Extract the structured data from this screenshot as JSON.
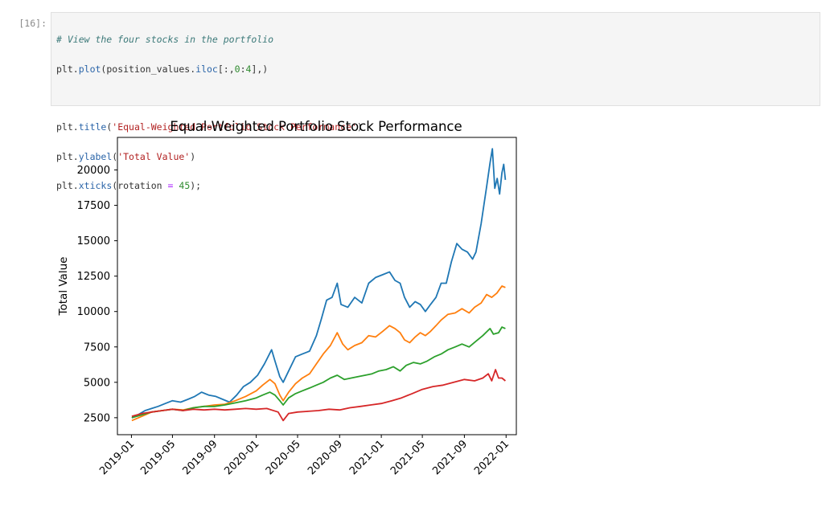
{
  "cell": {
    "prompt": "[16]:",
    "code": {
      "line1": "# View the four stocks in the portfolio",
      "line2": {
        "a": "plt",
        "b": ".",
        "c": "plot",
        "d": "(position_values",
        "e": ".",
        "f": "iloc",
        "g": "[:,",
        "h": "0",
        "i": ":",
        "j": "4",
        "k": "],)"
      },
      "line4": {
        "a": "plt",
        "b": ".",
        "c": "title",
        "d": "(",
        "e": "'Equal-Weighted Portfolio Stock Performance'",
        "f": ")"
      },
      "line5": {
        "a": "plt",
        "b": ".",
        "c": "ylabel",
        "d": "(",
        "e": "'Total Value'",
        "f": ")"
      },
      "line6": {
        "a": "plt",
        "b": ".",
        "c": "xticks",
        "d": "(rotation ",
        "e": "=",
        "f": " ",
        "g": "45",
        "h": ");"
      }
    }
  },
  "chart_data": {
    "type": "line",
    "title": "Equal-Weighted Portfolio Stock Performance",
    "xlabel": "",
    "ylabel": "Total Value",
    "x_ticks": [
      "2019-01",
      "2019-05",
      "2019-09",
      "2020-01",
      "2020-05",
      "2020-09",
      "2021-01",
      "2021-05",
      "2021-09",
      "2022-01"
    ],
    "y_ticks": [
      2500,
      5000,
      7500,
      10000,
      12500,
      15000,
      17500,
      20000
    ],
    "xlim": [
      "2018-11-21",
      "2022-01-31"
    ],
    "ylim": [
      1300,
      22300
    ],
    "grid": false,
    "series": [
      {
        "color": "#1f77b4",
        "values": [
          [
            "2019-01-02",
            2500
          ],
          [
            "2019-01-20",
            2700
          ],
          [
            "2019-02-10",
            3000
          ],
          [
            "2019-03-01",
            3150
          ],
          [
            "2019-03-20",
            3300
          ],
          [
            "2019-04-10",
            3500
          ],
          [
            "2019-05-01",
            3700
          ],
          [
            "2019-05-25",
            3600
          ],
          [
            "2019-06-15",
            3800
          ],
          [
            "2019-07-05",
            4000
          ],
          [
            "2019-07-25",
            4300
          ],
          [
            "2019-08-15",
            4100
          ],
          [
            "2019-09-05",
            4000
          ],
          [
            "2019-09-25",
            3800
          ],
          [
            "2019-10-15",
            3600
          ],
          [
            "2019-11-05",
            4100
          ],
          [
            "2019-11-25",
            4700
          ],
          [
            "2019-12-15",
            5000
          ],
          [
            "2020-01-05",
            5500
          ],
          [
            "2020-01-25",
            6300
          ],
          [
            "2020-02-15",
            7300
          ],
          [
            "2020-02-25",
            6500
          ],
          [
            "2020-03-10",
            5400
          ],
          [
            "2020-03-20",
            5000
          ],
          [
            "2020-04-05",
            5800
          ],
          [
            "2020-04-25",
            6800
          ],
          [
            "2020-05-15",
            7000
          ],
          [
            "2020-06-05",
            7200
          ],
          [
            "2020-06-25",
            8300
          ],
          [
            "2020-07-10",
            9500
          ],
          [
            "2020-07-25",
            10800
          ],
          [
            "2020-08-10",
            11000
          ],
          [
            "2020-08-25",
            12000
          ],
          [
            "2020-09-05",
            10500
          ],
          [
            "2020-09-25",
            10300
          ],
          [
            "2020-10-15",
            11000
          ],
          [
            "2020-11-05",
            10600
          ],
          [
            "2020-11-25",
            12000
          ],
          [
            "2020-12-15",
            12400
          ],
          [
            "2021-01-05",
            12600
          ],
          [
            "2021-01-25",
            12800
          ],
          [
            "2021-02-10",
            12200
          ],
          [
            "2021-02-25",
            12000
          ],
          [
            "2021-03-10",
            11000
          ],
          [
            "2021-03-25",
            10300
          ],
          [
            "2021-04-10",
            10700
          ],
          [
            "2021-04-25",
            10500
          ],
          [
            "2021-05-10",
            10000
          ],
          [
            "2021-05-25",
            10500
          ],
          [
            "2021-06-10",
            11000
          ],
          [
            "2021-06-25",
            12000
          ],
          [
            "2021-07-10",
            12000
          ],
          [
            "2021-07-25",
            13500
          ],
          [
            "2021-08-10",
            14800
          ],
          [
            "2021-08-25",
            14400
          ],
          [
            "2021-09-10",
            14200
          ],
          [
            "2021-09-25",
            13700
          ],
          [
            "2021-10-05",
            14200
          ],
          [
            "2021-10-20",
            16200
          ],
          [
            "2021-11-05",
            18800
          ],
          [
            "2021-11-15",
            20500
          ],
          [
            "2021-11-22",
            21500
          ],
          [
            "2021-11-29",
            18700
          ],
          [
            "2021-12-06",
            19400
          ],
          [
            "2021-12-13",
            18300
          ],
          [
            "2021-12-20",
            19800
          ],
          [
            "2021-12-25",
            20400
          ],
          [
            "2021-12-30",
            19300
          ]
        ]
      },
      {
        "color": "#ff7f0e",
        "values": [
          [
            "2019-01-02",
            2300
          ],
          [
            "2019-02-01",
            2600
          ],
          [
            "2019-03-01",
            2900
          ],
          [
            "2019-04-01",
            3000
          ],
          [
            "2019-05-01",
            3100
          ],
          [
            "2019-06-01",
            3050
          ],
          [
            "2019-07-01",
            3200
          ],
          [
            "2019-08-01",
            3300
          ],
          [
            "2019-09-01",
            3400
          ],
          [
            "2019-10-01",
            3450
          ],
          [
            "2019-11-01",
            3700
          ],
          [
            "2019-12-01",
            4000
          ],
          [
            "2020-01-01",
            4400
          ],
          [
            "2020-01-20",
            4800
          ],
          [
            "2020-02-10",
            5200
          ],
          [
            "2020-02-25",
            4900
          ],
          [
            "2020-03-10",
            4100
          ],
          [
            "2020-03-20",
            3700
          ],
          [
            "2020-04-05",
            4300
          ],
          [
            "2020-04-25",
            4900
          ],
          [
            "2020-05-15",
            5300
          ],
          [
            "2020-06-05",
            5600
          ],
          [
            "2020-06-25",
            6300
          ],
          [
            "2020-07-15",
            7000
          ],
          [
            "2020-08-05",
            7600
          ],
          [
            "2020-08-25",
            8500
          ],
          [
            "2020-09-10",
            7700
          ],
          [
            "2020-09-25",
            7300
          ],
          [
            "2020-10-15",
            7600
          ],
          [
            "2020-11-05",
            7800
          ],
          [
            "2020-11-25",
            8300
          ],
          [
            "2020-12-15",
            8200
          ],
          [
            "2021-01-05",
            8600
          ],
          [
            "2021-01-25",
            9000
          ],
          [
            "2021-02-10",
            8800
          ],
          [
            "2021-02-25",
            8500
          ],
          [
            "2021-03-10",
            8000
          ],
          [
            "2021-03-25",
            7800
          ],
          [
            "2021-04-10",
            8200
          ],
          [
            "2021-04-25",
            8500
          ],
          [
            "2021-05-10",
            8300
          ],
          [
            "2021-05-25",
            8600
          ],
          [
            "2021-06-10",
            9000
          ],
          [
            "2021-06-25",
            9400
          ],
          [
            "2021-07-15",
            9800
          ],
          [
            "2021-08-05",
            9900
          ],
          [
            "2021-08-25",
            10200
          ],
          [
            "2021-09-15",
            9900
          ],
          [
            "2021-10-01",
            10300
          ],
          [
            "2021-10-20",
            10600
          ],
          [
            "2021-11-05",
            11200
          ],
          [
            "2021-11-20",
            11000
          ],
          [
            "2021-12-05",
            11300
          ],
          [
            "2021-12-20",
            11800
          ],
          [
            "2021-12-30",
            11700
          ]
        ]
      },
      {
        "color": "#2ca02c",
        "values": [
          [
            "2019-01-02",
            2500
          ],
          [
            "2019-02-01",
            2700
          ],
          [
            "2019-03-01",
            2900
          ],
          [
            "2019-04-01",
            3000
          ],
          [
            "2019-05-01",
            3100
          ],
          [
            "2019-06-01",
            3000
          ],
          [
            "2019-07-01",
            3200
          ],
          [
            "2019-08-01",
            3300
          ],
          [
            "2019-09-01",
            3300
          ],
          [
            "2019-10-01",
            3400
          ],
          [
            "2019-11-01",
            3550
          ],
          [
            "2019-12-01",
            3700
          ],
          [
            "2020-01-01",
            3900
          ],
          [
            "2020-01-20",
            4100
          ],
          [
            "2020-02-10",
            4300
          ],
          [
            "2020-02-25",
            4100
          ],
          [
            "2020-03-10",
            3700
          ],
          [
            "2020-03-20",
            3400
          ],
          [
            "2020-04-05",
            3900
          ],
          [
            "2020-04-25",
            4200
          ],
          [
            "2020-05-15",
            4400
          ],
          [
            "2020-06-05",
            4600
          ],
          [
            "2020-06-25",
            4800
          ],
          [
            "2020-07-15",
            5000
          ],
          [
            "2020-08-05",
            5300
          ],
          [
            "2020-08-25",
            5500
          ],
          [
            "2020-09-15",
            5200
          ],
          [
            "2020-10-05",
            5300
          ],
          [
            "2020-10-25",
            5400
          ],
          [
            "2020-11-15",
            5500
          ],
          [
            "2020-12-05",
            5600
          ],
          [
            "2020-12-25",
            5800
          ],
          [
            "2021-01-15",
            5900
          ],
          [
            "2021-02-05",
            6100
          ],
          [
            "2021-02-25",
            5800
          ],
          [
            "2021-03-15",
            6200
          ],
          [
            "2021-04-05",
            6400
          ],
          [
            "2021-04-25",
            6300
          ],
          [
            "2021-05-15",
            6500
          ],
          [
            "2021-06-05",
            6800
          ],
          [
            "2021-06-25",
            7000
          ],
          [
            "2021-07-15",
            7300
          ],
          [
            "2021-08-05",
            7500
          ],
          [
            "2021-08-25",
            7700
          ],
          [
            "2021-09-15",
            7500
          ],
          [
            "2021-10-05",
            7900
          ],
          [
            "2021-10-25",
            8300
          ],
          [
            "2021-11-15",
            8800
          ],
          [
            "2021-11-25",
            8400
          ],
          [
            "2021-12-10",
            8500
          ],
          [
            "2021-12-20",
            8900
          ],
          [
            "2021-12-30",
            8800
          ]
        ]
      },
      {
        "color": "#d62728",
        "values": [
          [
            "2019-01-02",
            2600
          ],
          [
            "2019-02-01",
            2800
          ],
          [
            "2019-03-01",
            2900
          ],
          [
            "2019-04-01",
            3000
          ],
          [
            "2019-05-01",
            3100
          ],
          [
            "2019-06-01",
            3000
          ],
          [
            "2019-07-01",
            3100
          ],
          [
            "2019-08-01",
            3050
          ],
          [
            "2019-09-01",
            3100
          ],
          [
            "2019-10-01",
            3050
          ],
          [
            "2019-11-01",
            3100
          ],
          [
            "2019-12-01",
            3150
          ],
          [
            "2020-01-01",
            3100
          ],
          [
            "2020-02-01",
            3150
          ],
          [
            "2020-03-05",
            2900
          ],
          [
            "2020-03-20",
            2300
          ],
          [
            "2020-04-05",
            2800
          ],
          [
            "2020-05-01",
            2900
          ],
          [
            "2020-06-01",
            2950
          ],
          [
            "2020-07-01",
            3000
          ],
          [
            "2020-08-01",
            3100
          ],
          [
            "2020-09-01",
            3050
          ],
          [
            "2020-10-01",
            3200
          ],
          [
            "2020-11-01",
            3300
          ],
          [
            "2020-12-01",
            3400
          ],
          [
            "2021-01-01",
            3500
          ],
          [
            "2021-02-01",
            3700
          ],
          [
            "2021-03-01",
            3900
          ],
          [
            "2021-04-01",
            4200
          ],
          [
            "2021-05-01",
            4500
          ],
          [
            "2021-06-01",
            4700
          ],
          [
            "2021-07-01",
            4800
          ],
          [
            "2021-08-01",
            5000
          ],
          [
            "2021-09-01",
            5200
          ],
          [
            "2021-10-01",
            5100
          ],
          [
            "2021-10-25",
            5300
          ],
          [
            "2021-11-10",
            5600
          ],
          [
            "2021-11-20",
            5100
          ],
          [
            "2021-12-01",
            5900
          ],
          [
            "2021-12-10",
            5300
          ],
          [
            "2021-12-20",
            5300
          ],
          [
            "2021-12-30",
            5100
          ]
        ]
      }
    ]
  }
}
